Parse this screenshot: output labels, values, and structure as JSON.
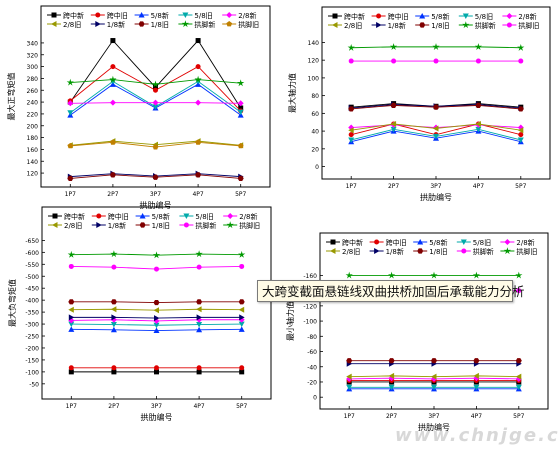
{
  "banner": "大跨变截面悬链线双曲拱桥加固后承载能力分析",
  "watermark": "www.chnjge.cn",
  "caption": "",
  "colors": {
    "black": "#000000",
    "red": "#e00000",
    "blue": "#0033ff",
    "teal": "#00aaaa",
    "magenta": "#ff00ff",
    "olive": "#999900",
    "navy": "#000066",
    "maroon": "#800000",
    "green": "#009900"
  },
  "chart_data": [
    {
      "type": "line",
      "id": "tl",
      "categories": [
        "1P7",
        "2P7",
        "3P7",
        "4P7",
        "5P7"
      ],
      "xlabel": "拱肋编号",
      "ylabel": "最大正弯矩值",
      "ylim": [
        110,
        350
      ],
      "yticks": [
        120,
        140,
        160,
        180,
        200,
        220,
        240,
        260,
        280,
        300,
        320,
        340
      ],
      "legend": [
        "跨中新",
        "跨中旧",
        "5/8新",
        "5/8旧",
        "2/8新",
        "2/8旧",
        "1/8新",
        "1/8旧",
        "拱脚新",
        "拱脚旧"
      ],
      "series": [
        {
          "name": "跨中新",
          "color": "#000000",
          "marker": "square",
          "values": [
            240,
            344,
            265,
            344,
            230
          ]
        },
        {
          "name": "跨中旧",
          "color": "#e00000",
          "marker": "circle",
          "values": [
            242,
            300,
            260,
            300,
            225
          ]
        },
        {
          "name": "5/8新",
          "color": "#0033ff",
          "marker": "triangle",
          "values": [
            218,
            270,
            230,
            270,
            218
          ]
        },
        {
          "name": "5/8旧",
          "color": "#00aaaa",
          "marker": "tridown",
          "values": [
            222,
            275,
            232,
            275,
            223
          ]
        },
        {
          "name": "2/8新",
          "color": "#ff00ff",
          "marker": "diamond",
          "values": [
            238,
            239,
            239,
            239,
            238
          ]
        },
        {
          "name": "2/8旧",
          "color": "#999900",
          "marker": "trileft",
          "values": [
            167,
            174,
            168,
            174,
            167
          ]
        },
        {
          "name": "1/8新",
          "color": "#000066",
          "marker": "triright",
          "values": [
            114,
            119,
            115,
            119,
            114
          ]
        },
        {
          "name": "1/8旧",
          "color": "#800000",
          "marker": "hexagon",
          "values": [
            111,
            117,
            113,
            117,
            111
          ]
        },
        {
          "name": "拱脚新",
          "color": "#009900",
          "marker": "star",
          "values": [
            273,
            278,
            270,
            278,
            272
          ]
        },
        {
          "name": "拱脚旧",
          "color": "#c08000",
          "marker": "pentagon",
          "values": [
            166,
            172,
            164,
            172,
            166
          ]
        }
      ]
    },
    {
      "type": "line",
      "id": "tr",
      "categories": [
        "1P7",
        "2P7",
        "3P7",
        "4P7",
        "5P7"
      ],
      "xlabel": "拱肋编号",
      "ylabel": "最大轴力值",
      "ylim": [
        -5,
        145
      ],
      "yticks": [
        0,
        20,
        40,
        60,
        80,
        100,
        120,
        140
      ],
      "legend": [
        "跨中新",
        "跨中旧",
        "5/8新",
        "5/8旧",
        "2/8新",
        "2/8旧",
        "1/8新",
        "1/8旧",
        "拱脚新",
        "拱脚旧"
      ],
      "series": [
        {
          "name": "跨中新",
          "color": "#000000",
          "marker": "square",
          "values": [
            67,
            71,
            68,
            71,
            67
          ]
        },
        {
          "name": "跨中旧",
          "color": "#e00000",
          "marker": "circle",
          "values": [
            36,
            48,
            36,
            48,
            36
          ]
        },
        {
          "name": "5/8新",
          "color": "#0033ff",
          "marker": "triangle",
          "values": [
            28,
            40,
            32,
            40,
            28
          ]
        },
        {
          "name": "5/8旧",
          "color": "#00aaaa",
          "marker": "tridown",
          "values": [
            30,
            42,
            34,
            42,
            30
          ]
        },
        {
          "name": "2/8新",
          "color": "#ff00ff",
          "marker": "diamond",
          "values": [
            44,
            47,
            44,
            47,
            44
          ]
        },
        {
          "name": "2/8旧",
          "color": "#999900",
          "marker": "trileft",
          "values": [
            41,
            48,
            43,
            48,
            41
          ]
        },
        {
          "name": "1/8新",
          "color": "#000066",
          "marker": "triright",
          "values": [
            66,
            70,
            68,
            70,
            66
          ]
        },
        {
          "name": "1/8旧",
          "color": "#800000",
          "marker": "hexagon",
          "values": [
            65,
            69,
            67,
            69,
            65
          ]
        },
        {
          "name": "拱脚新",
          "color": "#009900",
          "marker": "star",
          "values": [
            134,
            135,
            135,
            135,
            134
          ]
        },
        {
          "name": "拱脚旧",
          "color": "#ff00ff",
          "marker": "circle",
          "values": [
            119,
            119,
            119,
            119,
            119
          ]
        }
      ]
    },
    {
      "type": "line",
      "id": "bl",
      "categories": [
        "1P7",
        "2P7",
        "3P7",
        "4P7",
        "5P7"
      ],
      "xlabel": "拱肋编号",
      "ylabel": "最大负弯矩值",
      "ylim": [
        -20,
        -660
      ],
      "yticks": [
        -50,
        -100,
        -150,
        -200,
        -250,
        -300,
        -350,
        -400,
        -450,
        -500,
        -550,
        -600,
        -650
      ],
      "legend": [
        "跨中新",
        "跨中旧",
        "5/8新",
        "5/8旧",
        "2/8新",
        "2/8旧",
        "1/8新",
        "1/8旧",
        "拱脚新",
        "拱脚旧"
      ],
      "series": [
        {
          "name": "跨中新",
          "color": "#000000",
          "marker": "square",
          "values": [
            -100,
            -100,
            -100,
            -100,
            -100
          ]
        },
        {
          "name": "跨中旧",
          "color": "#e00000",
          "marker": "circle",
          "values": [
            -117,
            -117,
            -117,
            -117,
            -117
          ]
        },
        {
          "name": "5/8新",
          "color": "#0033ff",
          "marker": "triangle",
          "values": [
            -278,
            -276,
            -273,
            -276,
            -278
          ]
        },
        {
          "name": "5/8旧",
          "color": "#00aaaa",
          "marker": "tridown",
          "values": [
            -300,
            -298,
            -295,
            -298,
            -300
          ]
        },
        {
          "name": "2/8新",
          "color": "#ff00ff",
          "marker": "diamond",
          "values": [
            -315,
            -318,
            -313,
            -318,
            -318
          ]
        },
        {
          "name": "2/8旧",
          "color": "#999900",
          "marker": "trileft",
          "values": [
            -360,
            -362,
            -358,
            -362,
            -360
          ]
        },
        {
          "name": "1/8新",
          "color": "#000066",
          "marker": "triright",
          "values": [
            -328,
            -328,
            -325,
            -328,
            -328
          ]
        },
        {
          "name": "1/8旧",
          "color": "#800000",
          "marker": "hexagon",
          "values": [
            -393,
            -393,
            -390,
            -393,
            -393
          ]
        },
        {
          "name": "拱脚新",
          "color": "#ff00ff",
          "marker": "circle",
          "values": [
            -541,
            -538,
            -530,
            -538,
            -541
          ]
        },
        {
          "name": "拱脚旧",
          "color": "#009900",
          "marker": "star",
          "values": [
            -590,
            -593,
            -588,
            -593,
            -590
          ]
        }
      ]
    },
    {
      "type": "line",
      "id": "br",
      "categories": [
        "1P7",
        "2P7",
        "3P7",
        "4P7",
        "5P7"
      ],
      "xlabel": "拱肋编号",
      "ylabel": "最小轴力值",
      "ylim": [
        5,
        -175
      ],
      "yticks": [
        0,
        -20,
        -40,
        -60,
        -80,
        -100,
        -120,
        -140,
        -160
      ],
      "legend": [
        "跨中新",
        "跨中旧",
        "5/8新",
        "5/8旧",
        "2/8新",
        "2/8旧",
        "1/8新",
        "1/8旧",
        "拱脚新",
        "拱脚旧"
      ],
      "series": [
        {
          "name": "跨中新",
          "color": "#000000",
          "marker": "square",
          "values": [
            -20,
            -20,
            -20,
            -20,
            -20
          ]
        },
        {
          "name": "跨中旧",
          "color": "#e00000",
          "marker": "circle",
          "values": [
            -22,
            -22,
            -22,
            -22,
            -22
          ]
        },
        {
          "name": "5/8新",
          "color": "#0033ff",
          "marker": "triangle",
          "values": [
            -11,
            -11,
            -11,
            -11,
            -11
          ]
        },
        {
          "name": "5/8旧",
          "color": "#00aaaa",
          "marker": "tridown",
          "values": [
            -13,
            -13,
            -13,
            -13,
            -13
          ]
        },
        {
          "name": "2/8新",
          "color": "#ff00ff",
          "marker": "diamond",
          "values": [
            -24,
            -25,
            -24,
            -25,
            -24
          ]
        },
        {
          "name": "2/8旧",
          "color": "#999900",
          "marker": "trileft",
          "values": [
            -27,
            -28,
            -27,
            -28,
            -27
          ]
        },
        {
          "name": "1/8新",
          "color": "#000066",
          "marker": "triright",
          "values": [
            -44,
            -44,
            -44,
            -44,
            -44
          ]
        },
        {
          "name": "1/8旧",
          "color": "#800000",
          "marker": "hexagon",
          "values": [
            -48,
            -48,
            -48,
            -48,
            -48
          ]
        },
        {
          "name": "拱脚新",
          "color": "#ff00ff",
          "marker": "circle",
          "values": [
            -140,
            -140,
            -140,
            -140,
            -140
          ]
        },
        {
          "name": "拱脚旧",
          "color": "#009900",
          "marker": "star",
          "values": [
            -160,
            -160,
            -160,
            -160,
            -160
          ]
        }
      ]
    }
  ]
}
